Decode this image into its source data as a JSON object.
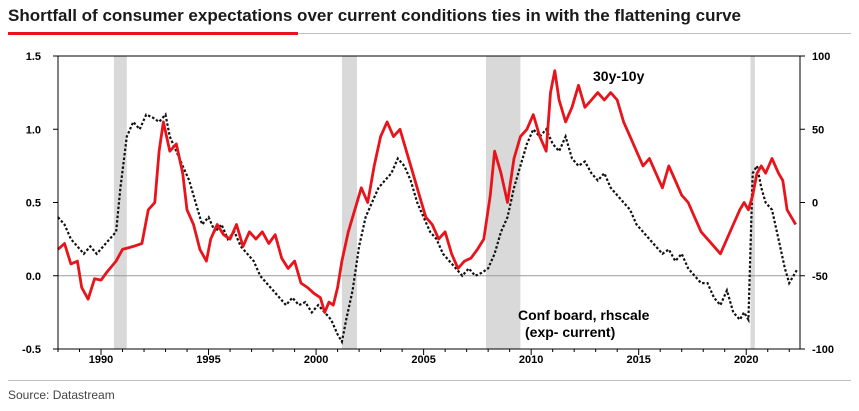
{
  "page": {
    "title": "Shortfall of consumer expectations over current conditions ties in with the flattening curve",
    "source": "Source: Datastream"
  },
  "colors": {
    "accent": "#e8141c",
    "series_curve": "#e8141c",
    "series_conf": "#111111",
    "recession": "#d9d9d9"
  },
  "chart_data": {
    "type": "line",
    "title": "Shortfall of consumer expectations over current conditions ties in with the flattening curve",
    "x_range": [
      1988.0,
      2022.5
    ],
    "x_ticks": [
      "1990",
      "1995",
      "2000",
      "2005",
      "2010",
      "2015",
      "2020"
    ],
    "y_left": {
      "range": [
        -0.5,
        1.5
      ],
      "ticks": [
        "-0.5",
        "0.0",
        "0.5",
        "1.0",
        "1.5"
      ]
    },
    "y_right": {
      "range": [
        -100,
        100
      ],
      "ticks": [
        "-100",
        "-50",
        "0",
        "50",
        "100"
      ]
    },
    "zero_line": 0.0,
    "annotations": [
      "30y-10y",
      "Conf board, rhscale",
      "(exp- current)"
    ],
    "recessions": [
      [
        1990.6,
        1991.2
      ],
      [
        2001.2,
        2001.9
      ],
      [
        2007.9,
        2009.5
      ],
      [
        2020.2,
        2020.4
      ]
    ],
    "series": [
      {
        "name": "30y-10y",
        "axis": "left",
        "points": [
          [
            1988.0,
            0.18
          ],
          [
            1988.3,
            0.22
          ],
          [
            1988.6,
            0.08
          ],
          [
            1988.9,
            0.1
          ],
          [
            1989.1,
            -0.08
          ],
          [
            1989.4,
            -0.16
          ],
          [
            1989.7,
            -0.02
          ],
          [
            1990.0,
            -0.03
          ],
          [
            1990.3,
            0.03
          ],
          [
            1990.7,
            0.1
          ],
          [
            1991.0,
            0.18
          ],
          [
            1991.5,
            0.2
          ],
          [
            1991.9,
            0.22
          ],
          [
            1992.2,
            0.45
          ],
          [
            1992.5,
            0.5
          ],
          [
            1992.7,
            0.85
          ],
          [
            1992.9,
            1.05
          ],
          [
            1993.2,
            0.85
          ],
          [
            1993.5,
            0.9
          ],
          [
            1993.8,
            0.7
          ],
          [
            1994.0,
            0.45
          ],
          [
            1994.3,
            0.35
          ],
          [
            1994.6,
            0.18
          ],
          [
            1994.9,
            0.1
          ],
          [
            1995.1,
            0.25
          ],
          [
            1995.4,
            0.35
          ],
          [
            1995.7,
            0.28
          ],
          [
            1996.0,
            0.25
          ],
          [
            1996.3,
            0.35
          ],
          [
            1996.6,
            0.2
          ],
          [
            1996.9,
            0.3
          ],
          [
            1997.2,
            0.25
          ],
          [
            1997.5,
            0.3
          ],
          [
            1997.8,
            0.22
          ],
          [
            1998.1,
            0.28
          ],
          [
            1998.4,
            0.12
          ],
          [
            1998.7,
            0.05
          ],
          [
            1999.0,
            0.1
          ],
          [
            1999.3,
            -0.05
          ],
          [
            1999.6,
            -0.08
          ],
          [
            1999.9,
            -0.12
          ],
          [
            2000.2,
            -0.15
          ],
          [
            2000.4,
            -0.25
          ],
          [
            2000.6,
            -0.18
          ],
          [
            2000.8,
            -0.2
          ],
          [
            2001.0,
            -0.08
          ],
          [
            2001.2,
            0.1
          ],
          [
            2001.5,
            0.3
          ],
          [
            2001.8,
            0.45
          ],
          [
            2002.1,
            0.6
          ],
          [
            2002.4,
            0.5
          ],
          [
            2002.7,
            0.75
          ],
          [
            2003.0,
            0.95
          ],
          [
            2003.3,
            1.05
          ],
          [
            2003.6,
            0.95
          ],
          [
            2003.9,
            1.0
          ],
          [
            2004.2,
            0.85
          ],
          [
            2004.5,
            0.7
          ],
          [
            2004.8,
            0.55
          ],
          [
            2005.1,
            0.4
          ],
          [
            2005.4,
            0.35
          ],
          [
            2005.7,
            0.25
          ],
          [
            2006.0,
            0.3
          ],
          [
            2006.3,
            0.15
          ],
          [
            2006.6,
            0.05
          ],
          [
            2006.9,
            0.1
          ],
          [
            2007.2,
            0.12
          ],
          [
            2007.5,
            0.18
          ],
          [
            2007.8,
            0.25
          ],
          [
            2008.1,
            0.55
          ],
          [
            2008.3,
            0.85
          ],
          [
            2008.6,
            0.7
          ],
          [
            2008.9,
            0.5
          ],
          [
            2009.2,
            0.8
          ],
          [
            2009.5,
            0.95
          ],
          [
            2009.8,
            1.0
          ],
          [
            2010.1,
            1.1
          ],
          [
            2010.4,
            0.95
          ],
          [
            2010.7,
            0.85
          ],
          [
            2010.9,
            1.25
          ],
          [
            2011.1,
            1.4
          ],
          [
            2011.3,
            1.2
          ],
          [
            2011.6,
            1.05
          ],
          [
            2011.9,
            1.15
          ],
          [
            2012.2,
            1.3
          ],
          [
            2012.5,
            1.15
          ],
          [
            2012.8,
            1.2
          ],
          [
            2013.1,
            1.25
          ],
          [
            2013.4,
            1.2
          ],
          [
            2013.7,
            1.25
          ],
          [
            2014.0,
            1.2
          ],
          [
            2014.3,
            1.05
          ],
          [
            2014.6,
            0.95
          ],
          [
            2014.9,
            0.85
          ],
          [
            2015.2,
            0.75
          ],
          [
            2015.5,
            0.8
          ],
          [
            2015.8,
            0.7
          ],
          [
            2016.1,
            0.6
          ],
          [
            2016.4,
            0.75
          ],
          [
            2016.7,
            0.65
          ],
          [
            2017.0,
            0.55
          ],
          [
            2017.3,
            0.5
          ],
          [
            2017.6,
            0.4
          ],
          [
            2017.9,
            0.3
          ],
          [
            2018.2,
            0.25
          ],
          [
            2018.5,
            0.2
          ],
          [
            2018.8,
            0.15
          ],
          [
            2019.1,
            0.25
          ],
          [
            2019.4,
            0.35
          ],
          [
            2019.7,
            0.45
          ],
          [
            2019.9,
            0.5
          ],
          [
            2020.1,
            0.45
          ],
          [
            2020.3,
            0.55
          ],
          [
            2020.5,
            0.7
          ],
          [
            2020.7,
            0.75
          ],
          [
            2020.9,
            0.7
          ],
          [
            2021.2,
            0.8
          ],
          [
            2021.5,
            0.7
          ],
          [
            2021.7,
            0.65
          ],
          [
            2021.9,
            0.45
          ],
          [
            2022.1,
            0.4
          ],
          [
            2022.3,
            0.35
          ]
        ]
      },
      {
        "name": "Conf board, rhscale (exp- current)",
        "axis": "right",
        "points": [
          [
            1988.0,
            -10
          ],
          [
            1988.3,
            -15
          ],
          [
            1988.6,
            -25
          ],
          [
            1988.9,
            -30
          ],
          [
            1989.2,
            -35
          ],
          [
            1989.5,
            -30
          ],
          [
            1989.8,
            -35
          ],
          [
            1990.1,
            -30
          ],
          [
            1990.4,
            -25
          ],
          [
            1990.7,
            -20
          ],
          [
            1990.9,
            10
          ],
          [
            1991.2,
            45
          ],
          [
            1991.5,
            55
          ],
          [
            1991.8,
            50
          ],
          [
            1992.1,
            60
          ],
          [
            1992.4,
            58
          ],
          [
            1992.7,
            55
          ],
          [
            1993.0,
            60
          ],
          [
            1993.2,
            45
          ],
          [
            1993.5,
            35
          ],
          [
            1993.8,
            25
          ],
          [
            1994.1,
            15
          ],
          [
            1994.4,
            0
          ],
          [
            1994.7,
            -15
          ],
          [
            1995.0,
            -10
          ],
          [
            1995.3,
            -20
          ],
          [
            1995.6,
            -15
          ],
          [
            1995.9,
            -25
          ],
          [
            1996.2,
            -20
          ],
          [
            1996.5,
            -30
          ],
          [
            1996.8,
            -35
          ],
          [
            1997.1,
            -40
          ],
          [
            1997.4,
            -50
          ],
          [
            1997.7,
            -55
          ],
          [
            1998.0,
            -60
          ],
          [
            1998.3,
            -65
          ],
          [
            1998.6,
            -70
          ],
          [
            1998.9,
            -65
          ],
          [
            1999.2,
            -70
          ],
          [
            1999.5,
            -68
          ],
          [
            1999.8,
            -75
          ],
          [
            2000.1,
            -70
          ],
          [
            2000.4,
            -75
          ],
          [
            2000.7,
            -80
          ],
          [
            2001.0,
            -90
          ],
          [
            2001.2,
            -95
          ],
          [
            2001.4,
            -80
          ],
          [
            2001.7,
            -60
          ],
          [
            2002.0,
            -30
          ],
          [
            2002.3,
            -10
          ],
          [
            2002.6,
            0
          ],
          [
            2002.9,
            10
          ],
          [
            2003.2,
            15
          ],
          [
            2003.5,
            20
          ],
          [
            2003.8,
            30
          ],
          [
            2004.1,
            25
          ],
          [
            2004.4,
            15
          ],
          [
            2004.7,
            0
          ],
          [
            2005.0,
            -10
          ],
          [
            2005.3,
            -20
          ],
          [
            2005.6,
            -25
          ],
          [
            2005.9,
            -35
          ],
          [
            2006.2,
            -40
          ],
          [
            2006.5,
            -45
          ],
          [
            2006.8,
            -50
          ],
          [
            2007.1,
            -45
          ],
          [
            2007.4,
            -50
          ],
          [
            2007.7,
            -48
          ],
          [
            2008.0,
            -45
          ],
          [
            2008.3,
            -35
          ],
          [
            2008.6,
            -20
          ],
          [
            2008.9,
            -10
          ],
          [
            2009.2,
            10
          ],
          [
            2009.5,
            25
          ],
          [
            2009.8,
            40
          ],
          [
            2010.1,
            50
          ],
          [
            2010.4,
            45
          ],
          [
            2010.7,
            50
          ],
          [
            2011.0,
            40
          ],
          [
            2011.3,
            35
          ],
          [
            2011.6,
            45
          ],
          [
            2011.9,
            30
          ],
          [
            2012.2,
            25
          ],
          [
            2012.5,
            28
          ],
          [
            2012.8,
            20
          ],
          [
            2013.1,
            15
          ],
          [
            2013.4,
            20
          ],
          [
            2013.7,
            10
          ],
          [
            2014.0,
            5
          ],
          [
            2014.3,
            0
          ],
          [
            2014.6,
            -5
          ],
          [
            2014.9,
            -15
          ],
          [
            2015.2,
            -20
          ],
          [
            2015.5,
            -25
          ],
          [
            2015.8,
            -30
          ],
          [
            2016.1,
            -35
          ],
          [
            2016.4,
            -32
          ],
          [
            2016.7,
            -40
          ],
          [
            2017.0,
            -35
          ],
          [
            2017.3,
            -45
          ],
          [
            2017.6,
            -50
          ],
          [
            2017.9,
            -55
          ],
          [
            2018.2,
            -55
          ],
          [
            2018.5,
            -65
          ],
          [
            2018.8,
            -70
          ],
          [
            2019.1,
            -60
          ],
          [
            2019.4,
            -75
          ],
          [
            2019.7,
            -80
          ],
          [
            2019.9,
            -75
          ],
          [
            2020.1,
            -80
          ],
          [
            2020.3,
            20
          ],
          [
            2020.5,
            25
          ],
          [
            2020.7,
            10
          ],
          [
            2020.9,
            0
          ],
          [
            2021.2,
            -5
          ],
          [
            2021.5,
            -25
          ],
          [
            2021.8,
            -45
          ],
          [
            2022.0,
            -55
          ],
          [
            2022.2,
            -50
          ],
          [
            2022.4,
            -45
          ]
        ]
      }
    ]
  }
}
